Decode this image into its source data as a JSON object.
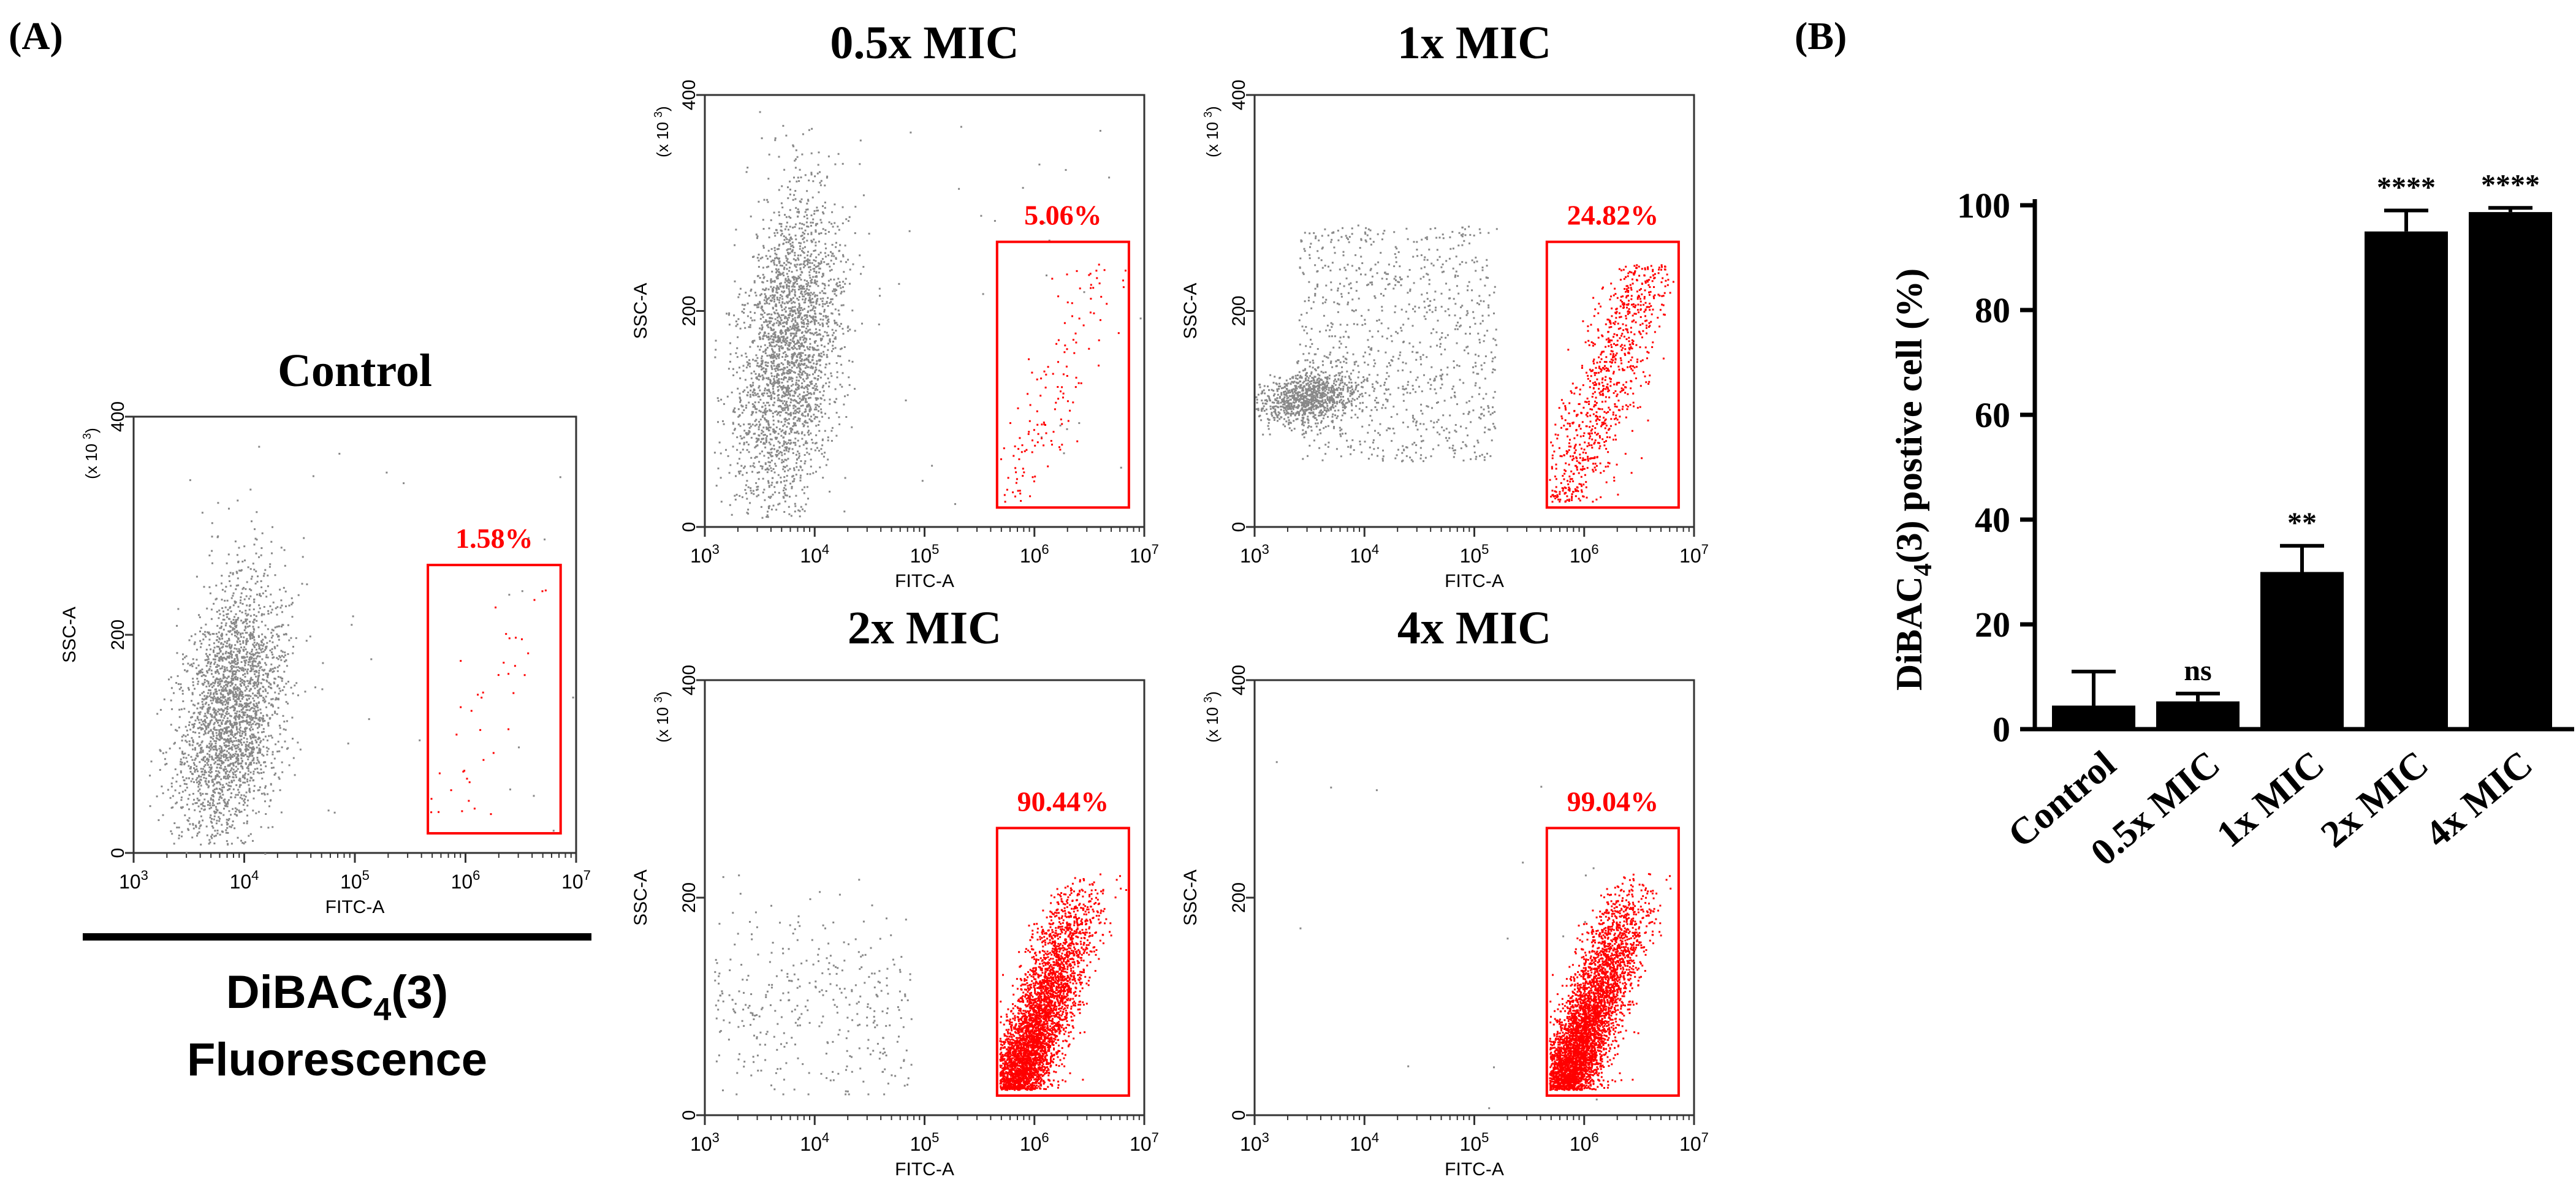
{
  "panel_labels": {
    "a": "(A)",
    "b": "(B)"
  },
  "flow": {
    "xlabel": "FITC-A",
    "ylabel": "SSC-A",
    "multiplier": "(x 10",
    "multiplier_exp": "3",
    "multiplier_close": ")",
    "y_ticks": [
      "0",
      "200",
      "400"
    ],
    "x_tick_base": "10",
    "x_tick_exps": [
      "3",
      "4",
      "5",
      "6",
      "7"
    ],
    "footer": {
      "line1_pre": "DiBAC",
      "line1_sub": "4",
      "line1_post": "(3)",
      "line2": "Fluorescence"
    },
    "gate_color": "#ff0000",
    "dot_color": "#888888",
    "plots": [
      {
        "title": "Control",
        "gate_percent": "1.58%",
        "positive": 1.58
      },
      {
        "title": "0.5x MIC",
        "gate_percent": "5.06%",
        "positive": 5.06
      },
      {
        "title": "1x MIC",
        "gate_percent": "24.82%",
        "positive": 24.82
      },
      {
        "title": "2x MIC",
        "gate_percent": "90.44%",
        "positive": 90.44
      },
      {
        "title": "4x MIC",
        "gate_percent": "99.04%",
        "positive": 99.04
      }
    ]
  },
  "chart_data": {
    "type": "bar",
    "title": "",
    "categories": [
      "Control",
      "0.5x MIC",
      "1x MIC",
      "2x MIC",
      "4x MIC"
    ],
    "values": [
      4.5,
      5.3,
      30,
      95,
      98.7
    ],
    "errors": [
      6.5,
      1.5,
      5,
      4,
      0.8
    ],
    "significance": [
      "",
      "ns",
      "**",
      "****",
      "****"
    ],
    "ylabel_pre": "DiBAC",
    "ylabel_sub": "4",
    "ylabel_post": "(3)  postive cell  (%)",
    "xlabel": "",
    "ylim": [
      0,
      100
    ],
    "y_ticks": [
      "0",
      "20",
      "40",
      "60",
      "80",
      "100"
    ],
    "bar_color": "#000000"
  }
}
